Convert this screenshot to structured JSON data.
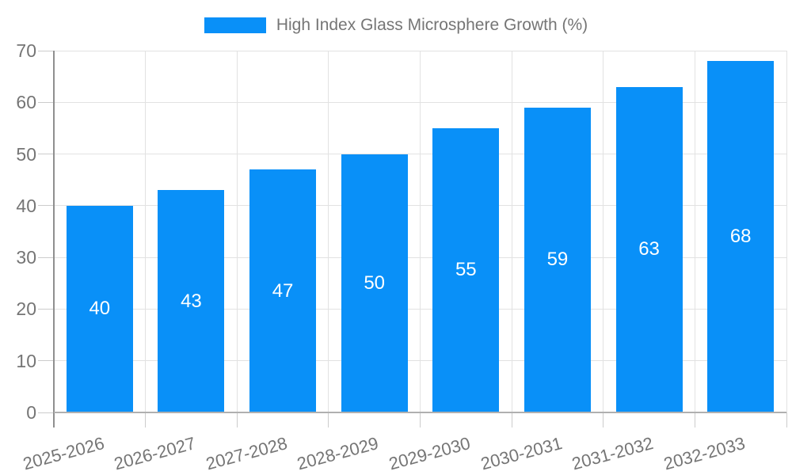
{
  "legend": {
    "label": "High Index Glass Microsphere Growth (%)"
  },
  "colors": {
    "bar": "#0990f8",
    "grid": "#e2e2e2",
    "outer_tick": "#cccccc",
    "y_axis_line": "#8f8f8f",
    "x_axis_line": "#b0b0b0",
    "text": "#757575",
    "value_label": "#ffffff"
  },
  "chart_data": {
    "type": "bar",
    "title": "High Index Glass Microsphere Growth (%)",
    "categories": [
      "2025-2026",
      "2026-2027",
      "2027-2028",
      "2028-2029",
      "2029-2030",
      "2030-2031",
      "2031-2032",
      "2032-2033"
    ],
    "values": [
      40,
      43,
      47,
      50,
      55,
      59,
      63,
      68
    ],
    "xlabel": "",
    "ylabel": "",
    "ylim": [
      0,
      70
    ],
    "yticks": [
      0,
      10,
      20,
      30,
      40,
      50,
      60,
      70
    ],
    "grid": true,
    "legend_position": "top-center",
    "bar_color": "#0990f8",
    "value_labels_position": "inside-center"
  }
}
